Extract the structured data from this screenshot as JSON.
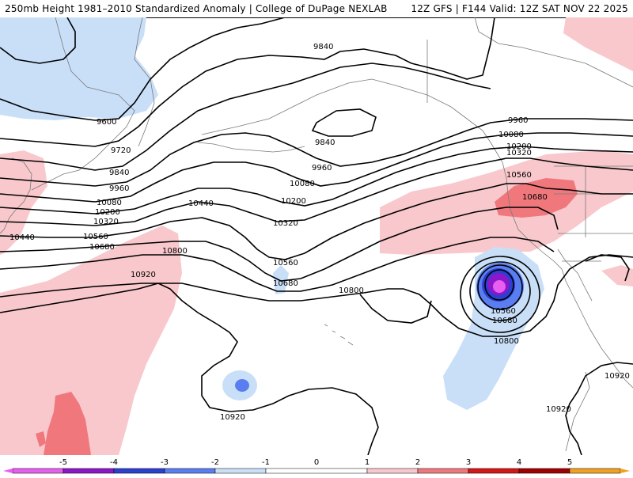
{
  "header": {
    "left": "250mb Height 1981–2010 Standardized Anomaly | College of DuPage NEXLAB",
    "right": "12Z GFS | F144 Valid: 12Z SAT NOV 22 2025"
  },
  "colors": {
    "neg5": "#e85ef0",
    "neg4": "#8a17c9",
    "neg3": "#2b3fd0",
    "neg2": "#5a7ef0",
    "neg1": "#c9dff8",
    "pos1": "#f8c8cc",
    "pos2": "#f0787c",
    "pos3": "#d41616",
    "pos4": "#a00000",
    "pos5": "#f2a020",
    "land_line": "#7a7a7a",
    "contour": "#000000"
  },
  "legend": {
    "ticks": [
      "-5",
      "-4",
      "-3",
      "-2",
      "-1",
      "0",
      "1",
      "2",
      "3",
      "4",
      "5"
    ]
  },
  "contours": {
    "labels": {
      "c9600": "9600",
      "c9720": "9720",
      "c9840a": "9840",
      "c9840b": "9840",
      "c9840c": "9840",
      "c9960a": "9960",
      "c9960b": "9960",
      "c9960c": "9960",
      "c10080a": "10080",
      "c10080b": "10080",
      "c10080c": "10080",
      "c10200a": "10200",
      "c10200b": "10200",
      "c10200c": "10200",
      "c10320a": "10320",
      "c10320b": "10320",
      "c10320c": "10320",
      "c10440a": "10440",
      "c10440b": "10440",
      "c10560a": "10560",
      "c10560b": "10560",
      "c10560c": "10560",
      "c10560d": "10560",
      "c10680a": "10680",
      "c10680b": "10680",
      "c10680c": "10680",
      "c10680d": "10680",
      "c10800a": "10800",
      "c10800b": "10800",
      "c10800c": "10800",
      "c10920a": "10920",
      "c10920b": "10920",
      "c10920c": "10920",
      "c10920d": "10920"
    }
  }
}
